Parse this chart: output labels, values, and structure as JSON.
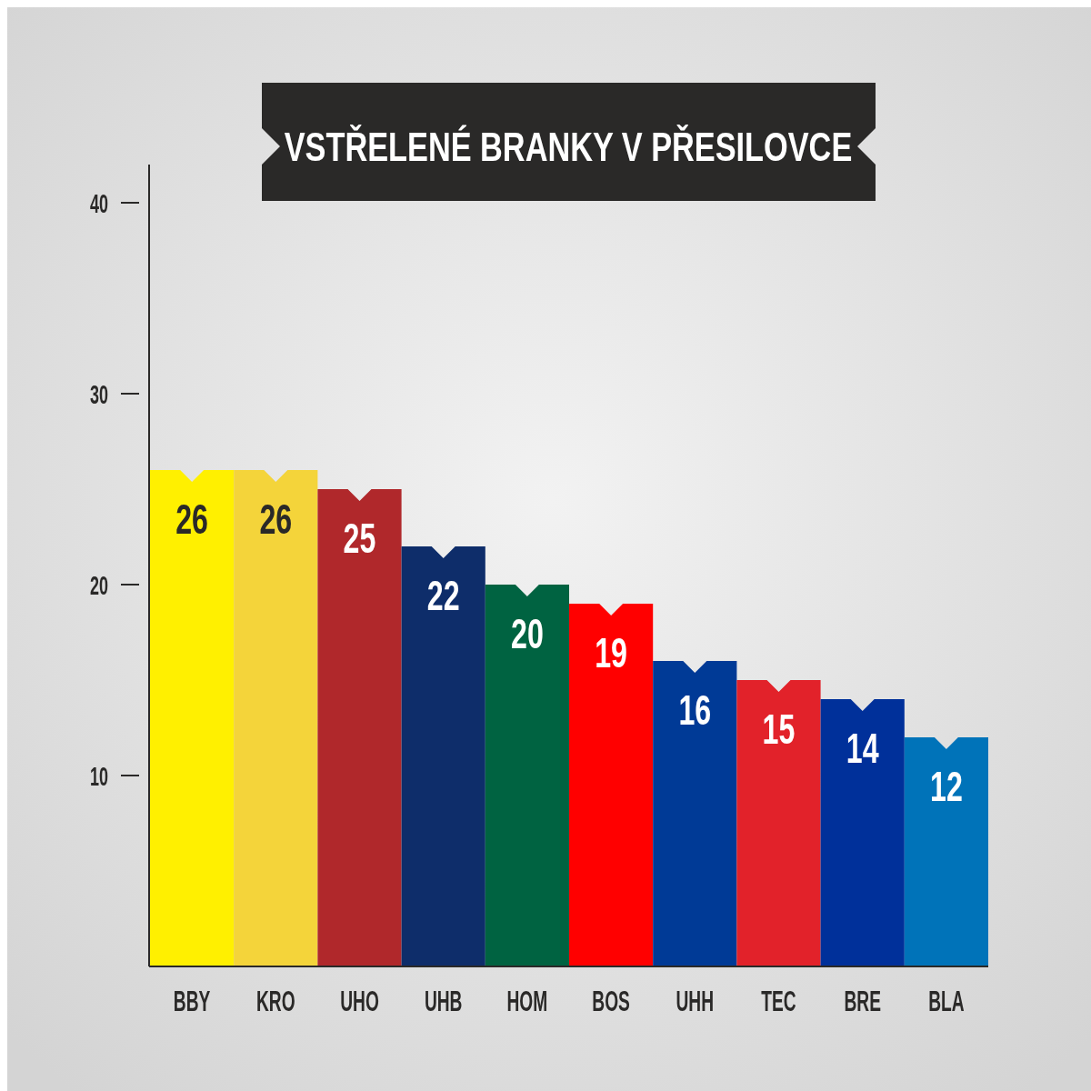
{
  "chart_data": {
    "type": "bar",
    "title": "VSTŘELENÉ BRANKY V PŘESILOVCE",
    "categories": [
      "BBY",
      "KRO",
      "UHO",
      "UHB",
      "HOM",
      "BOS",
      "UHH",
      "TEC",
      "BRE",
      "BLA"
    ],
    "values": [
      26,
      26,
      25,
      22,
      20,
      19,
      16,
      15,
      14,
      12
    ],
    "colors": [
      "#fff000",
      "#f4d43a",
      "#b0282b",
      "#0e2d6a",
      "#006341",
      "#ff0000",
      "#003a96",
      "#e2222a",
      "#00309a",
      "#0073b9"
    ],
    "ylim": [
      0,
      42
    ],
    "yticks": [
      10,
      20,
      30,
      40
    ],
    "grid": false,
    "data_labels": true
  }
}
